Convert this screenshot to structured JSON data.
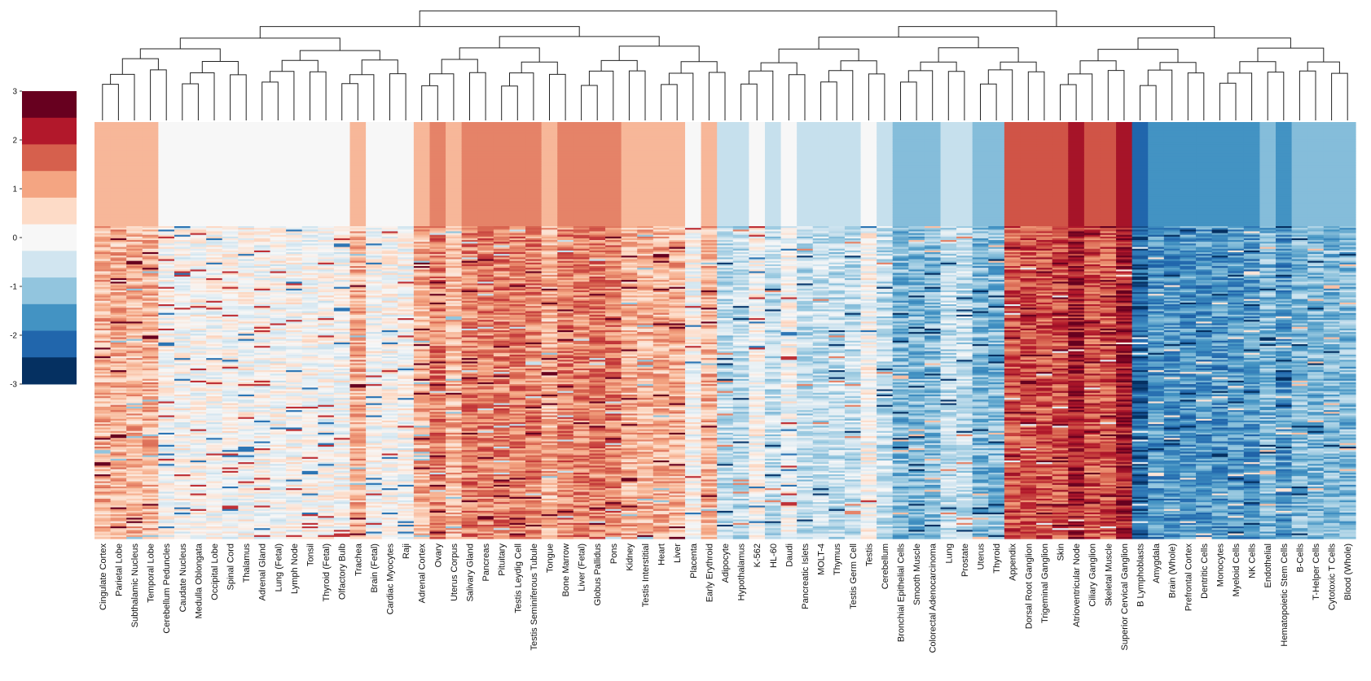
{
  "chart_data": {
    "type": "heatmap",
    "title": "",
    "xlabel": "",
    "ylabel": "",
    "colorbar": {
      "ticks": [
        3,
        2,
        1,
        0,
        -1,
        -2,
        -3
      ],
      "range": [
        -3,
        3
      ],
      "colors": [
        "#67001f",
        "#b2182b",
        "#d6604d",
        "#f4a582",
        "#fddbc7",
        "#f7f7f7",
        "#d1e5f0",
        "#92c5de",
        "#4393c3",
        "#2166ac",
        "#053061"
      ]
    },
    "columns": [
      {
        "label": "Cingulate Cortex",
        "level": 1
      },
      {
        "label": "Parietal Lobe",
        "level": 1
      },
      {
        "label": "Subthalamic Nucleus",
        "level": 1
      },
      {
        "label": "Temporal Lobe",
        "level": 1
      },
      {
        "label": "Cerebellum Peduncles",
        "level": 0
      },
      {
        "label": "Caudate Nucleus",
        "level": 0
      },
      {
        "label": "Medulla Oblongata",
        "level": 0
      },
      {
        "label": "Occipital Lobe",
        "level": 0
      },
      {
        "label": "Spinal Cord",
        "level": 0
      },
      {
        "label": "Thalamus",
        "level": 0
      },
      {
        "label": "Adrenal Gland",
        "level": 0
      },
      {
        "label": "Lung (Fetal)",
        "level": 0
      },
      {
        "label": "Lymph Node",
        "level": 0
      },
      {
        "label": "Tonsil",
        "level": 0
      },
      {
        "label": "Thyroid (Fetal)",
        "level": 0
      },
      {
        "label": "Olfactory Bulb",
        "level": 0
      },
      {
        "label": "Trachea",
        "level": 1
      },
      {
        "label": "Brain (Fetal)",
        "level": 0
      },
      {
        "label": "Cardiac Myocytes",
        "level": 0
      },
      {
        "label": "Raji",
        "level": 0
      },
      {
        "label": "Adrenal Cortex",
        "level": 1
      },
      {
        "label": "Ovary",
        "level": 1.5
      },
      {
        "label": "Uterus Corpus",
        "level": 1
      },
      {
        "label": "Salivary Gland",
        "level": 1.5
      },
      {
        "label": "Pancreas",
        "level": 1.5
      },
      {
        "label": "Pituitary",
        "level": 1.5
      },
      {
        "label": "Testis Leydig Cell",
        "level": 1.5
      },
      {
        "label": "Testis Seminiferous Tubule",
        "level": 1.5
      },
      {
        "label": "Tongue",
        "level": 1
      },
      {
        "label": "Bone Marrow",
        "level": 1.5
      },
      {
        "label": "Liver (Fetal)",
        "level": 1.5
      },
      {
        "label": "Globus Pallidus",
        "level": 1.5
      },
      {
        "label": "Pons",
        "level": 1.5
      },
      {
        "label": "Kidney",
        "level": 1
      },
      {
        "label": "Testis Interstitial",
        "level": 1
      },
      {
        "label": "Heart",
        "level": 1
      },
      {
        "label": "Liver",
        "level": 1
      },
      {
        "label": "Placenta",
        "level": 0
      },
      {
        "label": "Early Erythroid",
        "level": 1
      },
      {
        "label": "Adipocyte",
        "level": -0.7
      },
      {
        "label": "Hypothalamus",
        "level": -0.7
      },
      {
        "label": "K-562",
        "level": 0
      },
      {
        "label": "HL-60",
        "level": -0.7
      },
      {
        "label": "Daudi",
        "level": 0
      },
      {
        "label": "Pancreatic Islets",
        "level": -0.7
      },
      {
        "label": "MOLT-4",
        "level": -0.7
      },
      {
        "label": "Thymus",
        "level": -0.7
      },
      {
        "label": "Testis Germ Cell",
        "level": -0.7
      },
      {
        "label": "Testis",
        "level": 0
      },
      {
        "label": "Cerebellum",
        "level": -0.7
      },
      {
        "label": "Bronchial Epithelial Cells",
        "level": -1.3
      },
      {
        "label": "Smooth Muscle",
        "level": -1.3
      },
      {
        "label": "Colorectal Adenocarcinoma",
        "level": -1.3
      },
      {
        "label": "Lung",
        "level": -0.7
      },
      {
        "label": "Prostate",
        "level": -0.7
      },
      {
        "label": "Uterus",
        "level": -1.3
      },
      {
        "label": "Thyroid",
        "level": -1.3
      },
      {
        "label": "Appendix",
        "level": 1.9
      },
      {
        "label": "Dorsal Root Ganglion",
        "level": 1.9
      },
      {
        "label": "Trigeminal Ganglion",
        "level": 1.9
      },
      {
        "label": "Skin",
        "level": 1.9
      },
      {
        "label": "Atrioventricular Node",
        "level": 2.5
      },
      {
        "label": "Ciliary Ganglion",
        "level": 1.9
      },
      {
        "label": "Skeletal Muscle",
        "level": 1.9
      },
      {
        "label": "Superior Cervical Ganglion",
        "level": 2.5
      },
      {
        "label": "B Lymphoblasts",
        "level": -2.4
      },
      {
        "label": "Amygdala",
        "level": -1.8
      },
      {
        "label": "Brain (Whole)",
        "level": -1.8
      },
      {
        "label": "Prefrontal Cortex",
        "level": -1.8
      },
      {
        "label": "Dentritic Cells",
        "level": -1.8
      },
      {
        "label": "Monocytes",
        "level": -1.8
      },
      {
        "label": "Myeloid Cells",
        "level": -1.8
      },
      {
        "label": "NK Cells",
        "level": -1.8
      },
      {
        "label": "Endothelial",
        "level": -1.3
      },
      {
        "label": "Hematopoietic Stem Cells",
        "level": -1.8
      },
      {
        "label": "B-Cells",
        "level": -1.3
      },
      {
        "label": "T-Helper Cells",
        "level": -1.3
      },
      {
        "label": "Cytotoxic T Cells",
        "level": -1.3
      },
      {
        "label": "Blood (Whole)",
        "level": -1.3
      }
    ]
  }
}
